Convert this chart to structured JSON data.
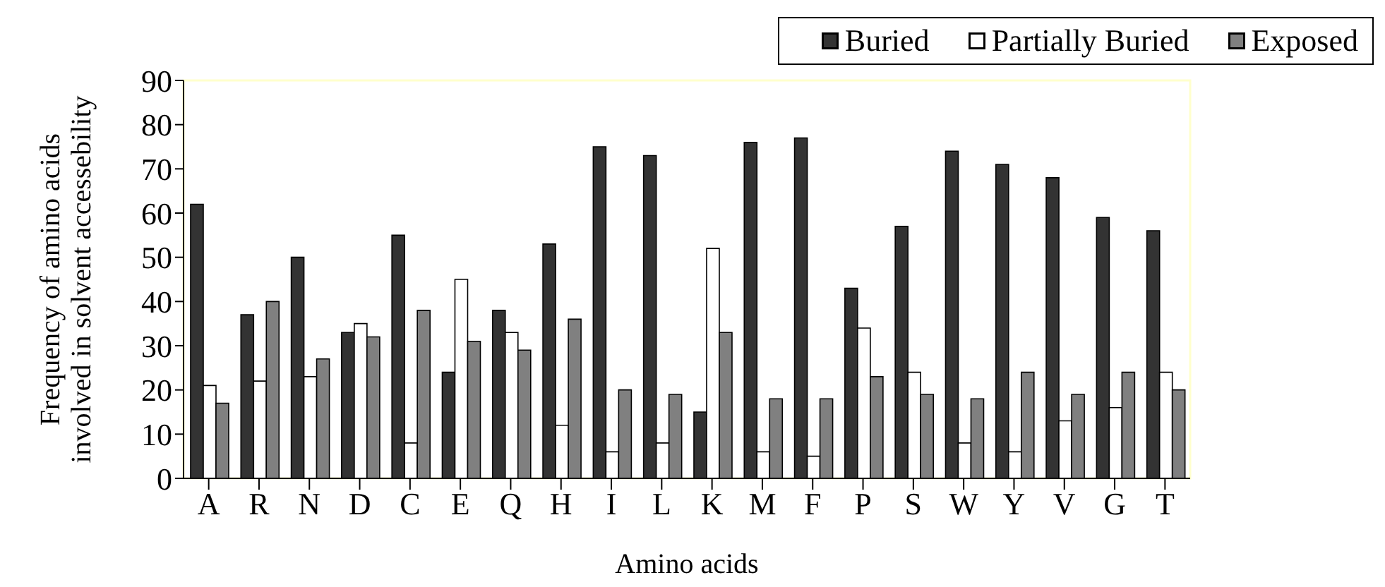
{
  "chart_data": {
    "type": "bar",
    "xlabel": "Amino acids",
    "ylabel": "Frequency of amino acids involved in solvent accessebility",
    "categories": [
      "A",
      "R",
      "N",
      "D",
      "C",
      "E",
      "Q",
      "H",
      "I",
      "L",
      "K",
      "M",
      "F",
      "P",
      "S",
      "W",
      "Y",
      "V",
      "G",
      "T"
    ],
    "series": [
      {
        "name": "Buried",
        "color": "#333333",
        "values": [
          62,
          37,
          50,
          33,
          55,
          24,
          38,
          53,
          75,
          73,
          15,
          76,
          77,
          43,
          57,
          74,
          71,
          68,
          59,
          56
        ]
      },
      {
        "name": "Partially Buried",
        "color": "#ffffff",
        "values": [
          21,
          22,
          23,
          35,
          8,
          45,
          33,
          12,
          6,
          8,
          52,
          6,
          5,
          34,
          24,
          8,
          6,
          13,
          16,
          24
        ]
      },
      {
        "name": "Exposed",
        "color": "#808080",
        "values": [
          17,
          40,
          27,
          32,
          38,
          31,
          29,
          36,
          20,
          19,
          33,
          18,
          18,
          23,
          19,
          18,
          24,
          19,
          24,
          20
        ]
      }
    ],
    "ylim": [
      0,
      90
    ],
    "yticks": [
      0,
      10,
      20,
      30,
      40,
      50,
      60,
      70,
      80,
      90
    ],
    "legend": "top right"
  }
}
